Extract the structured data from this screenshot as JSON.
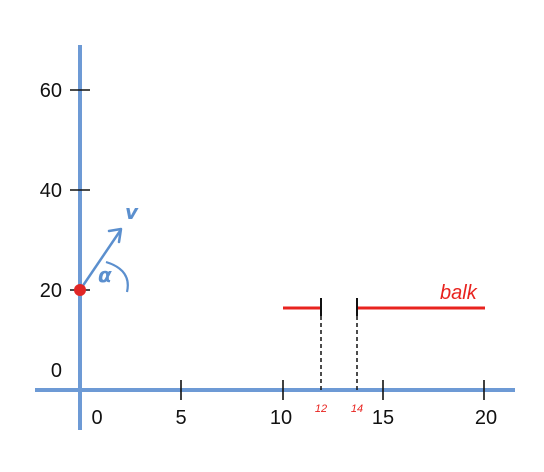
{
  "colors": {
    "axis": "#6d9ad5",
    "balk": "#e8231f",
    "vector": "#5b8fce",
    "point": "#e02626",
    "tick": "#111111"
  },
  "axes": {
    "x_ticks": [
      "0",
      "5",
      "10",
      "15",
      "20"
    ],
    "y_ticks": [
      "0",
      "20",
      "40",
      "60"
    ]
  },
  "vector_label": "v",
  "angle_label": "α",
  "balk": {
    "label": "balk",
    "gap_labels": [
      "12",
      "14"
    ]
  }
}
